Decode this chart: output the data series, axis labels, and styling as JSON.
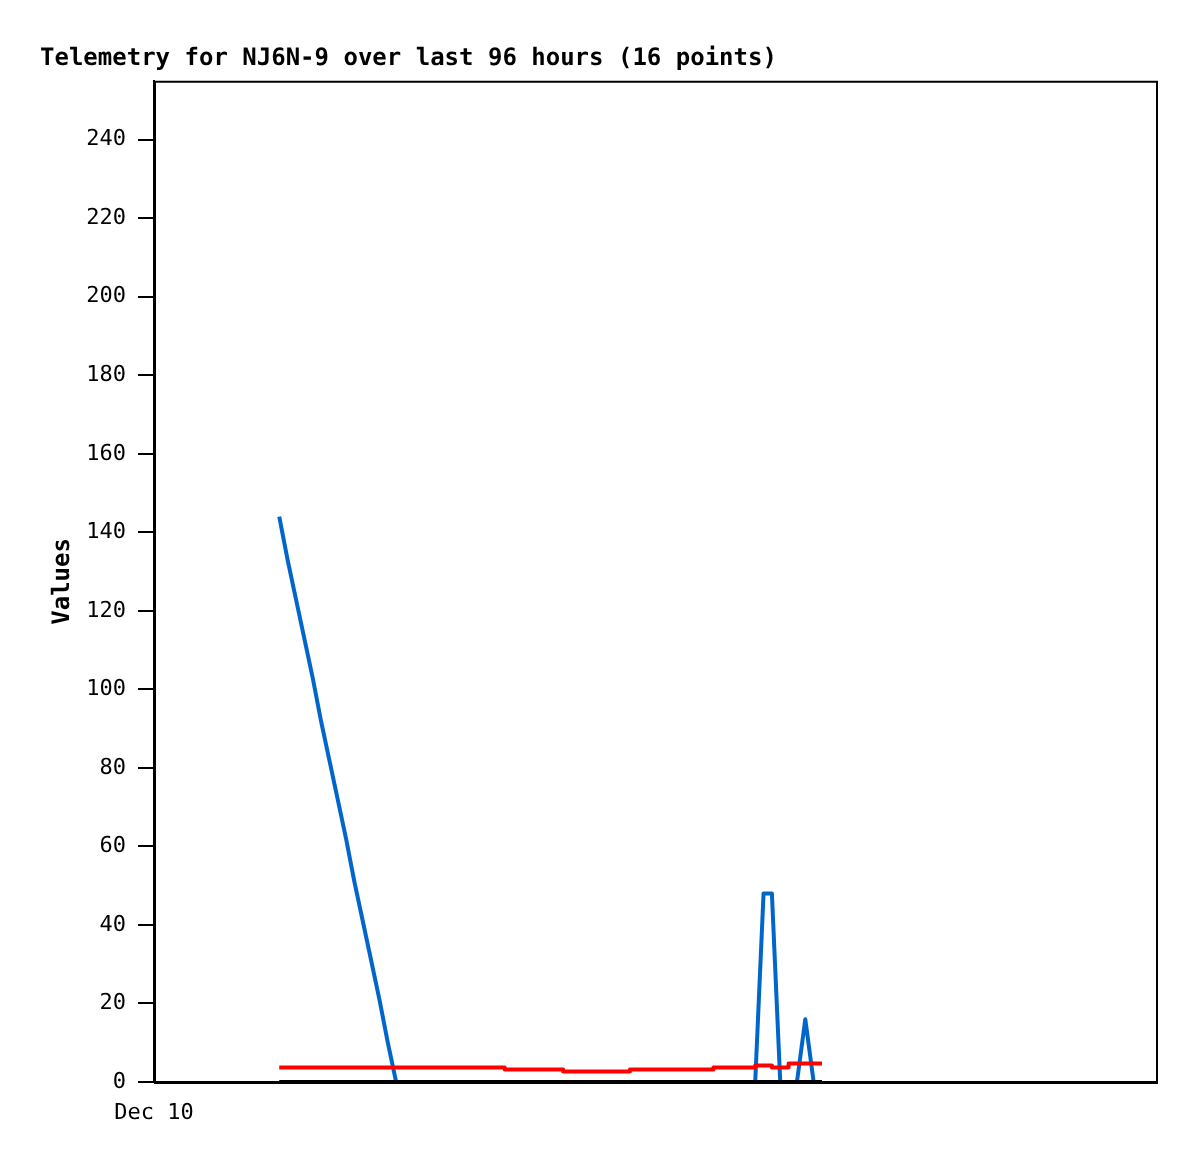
{
  "chart_data": {
    "type": "line",
    "title": "Telemetry for NJ6N-9 over last 96 hours (16 points)",
    "ylabel": "Values",
    "annotations": [
      "Dec 10"
    ],
    "categories": [
      null,
      null,
      null,
      null,
      null,
      null,
      null,
      null,
      null,
      null,
      null,
      null,
      null,
      null,
      null,
      null,
      null,
      null,
      null,
      null,
      null,
      null,
      null,
      null,
      null,
      null,
      null,
      null,
      null,
      null,
      null,
      null,
      null,
      null,
      null,
      null,
      null,
      null,
      null,
      null,
      null,
      null,
      null,
      null,
      null,
      null,
      null,
      null,
      null,
      null,
      null,
      null,
      null,
      null,
      null,
      null,
      null,
      null,
      null,
      null,
      null,
      null,
      null,
      null,
      null,
      null
    ],
    "ylim": [
      0,
      255
    ],
    "yticks": [
      0,
      20,
      40,
      60,
      80,
      100,
      120,
      140,
      160,
      180,
      200,
      220,
      240
    ],
    "grid": false,
    "legend": false,
    "marker": "none",
    "line_style": "solid",
    "series": [
      {
        "type": "line",
        "color": "#000000",
        "values": [
          0,
          0,
          0,
          0,
          0,
          0,
          0,
          0,
          0,
          0,
          0,
          0,
          0,
          0,
          0,
          0,
          0,
          0,
          0,
          0,
          0,
          0,
          0,
          0,
          0,
          0,
          0,
          0,
          0,
          0,
          0,
          0,
          0,
          0,
          0,
          0,
          0,
          0,
          0,
          0,
          0,
          0,
          0,
          0,
          0,
          0,
          0,
          0,
          0,
          0,
          0,
          0,
          0,
          0,
          0,
          0,
          0,
          0,
          0,
          0,
          0,
          0,
          0,
          0,
          0,
          0
        ]
      },
      {
        "type": "step",
        "color": "#ff0000",
        "values": [
          3.7,
          3.7,
          3.7,
          3.7,
          3.7,
          3.7,
          3.7,
          3.7,
          3.7,
          3.7,
          3.7,
          3.7,
          3.7,
          3.7,
          3.7,
          3.7,
          3.7,
          3.7,
          3.7,
          3.7,
          3.7,
          3.7,
          3.7,
          3.7,
          3.7,
          3.7,
          3.7,
          3.7,
          3.2,
          3.2,
          3.2,
          3.2,
          3.2,
          3.2,
          3.2,
          2.7,
          2.7,
          2.7,
          2.7,
          2.7,
          2.7,
          2.7,
          2.7,
          3.2,
          3.2,
          3.2,
          3.2,
          3.2,
          3.2,
          3.2,
          3.2,
          3.2,
          3.2,
          3.7,
          3.7,
          3.7,
          3.7,
          3.7,
          4.2,
          4.2,
          3.7,
          3.7,
          4.7,
          4.7,
          4.7,
          4.7
        ]
      },
      {
        "type": "line",
        "color": "#0066cc",
        "values": [
          144,
          133,
          123,
          113,
          103,
          92,
          82,
          72,
          62,
          51,
          41,
          31,
          21,
          10,
          0,
          0,
          null,
          null,
          null,
          null,
          null,
          null,
          null,
          null,
          null,
          null,
          null,
          null,
          null,
          null,
          null,
          null,
          null,
          null,
          null,
          null,
          null,
          null,
          null,
          null,
          null,
          null,
          null,
          null,
          null,
          null,
          null,
          null,
          null,
          null,
          null,
          null,
          null,
          null,
          null,
          null,
          null,
          0,
          48,
          48,
          0,
          0,
          0,
          16,
          0,
          0
        ]
      }
    ]
  }
}
